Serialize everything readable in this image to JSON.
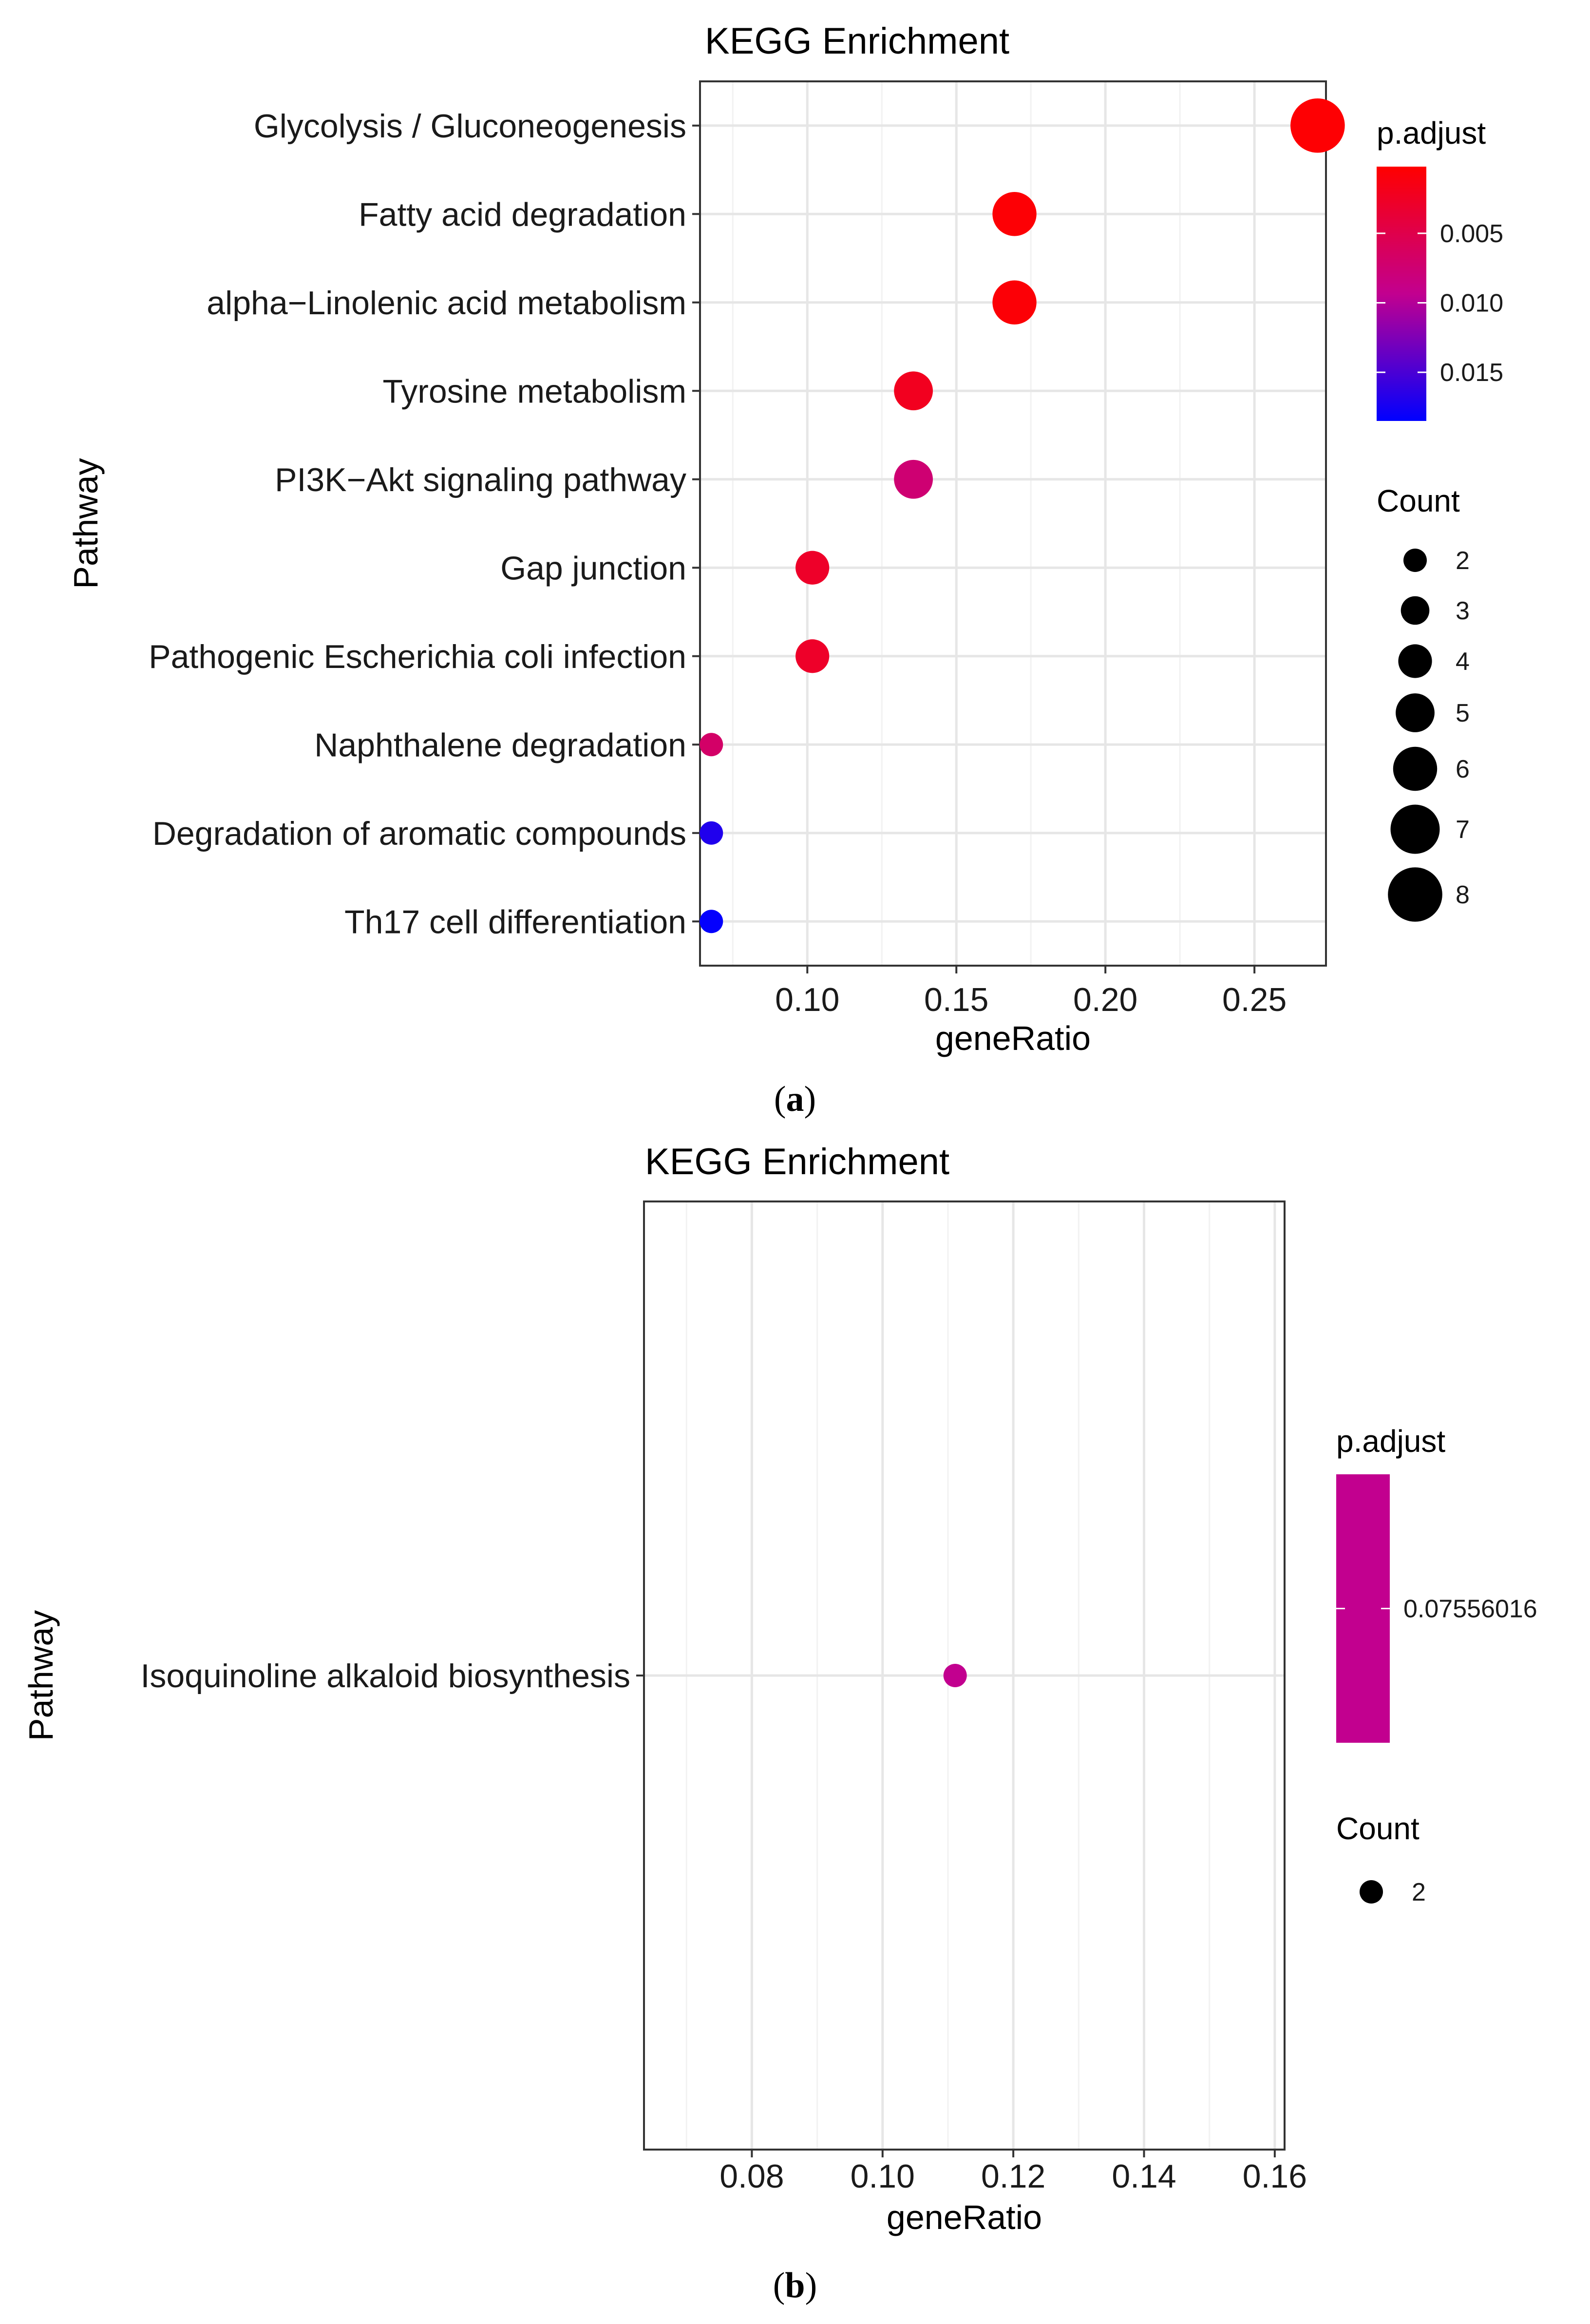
{
  "panels": [
    {
      "caption_letter": "a",
      "legend": {
        "color_title": "p.adjust",
        "color_ticks": [
          "0.005",
          "0.010",
          "0.015"
        ],
        "color_tick_values": [
          0.005,
          0.01,
          0.015
        ],
        "color_range": [
          0.0002,
          0.0185
        ],
        "gradient_colors": [
          "#FF0000",
          "#C2008F",
          "#0000FF"
        ],
        "size_title": "Count",
        "size_entries": [
          "2",
          "3",
          "4",
          "5",
          "6",
          "7",
          "8"
        ]
      },
      "chart_data": {
        "type": "scatter",
        "title": "KEGG Enrichment",
        "xlabel": "geneRatio",
        "ylabel": "Pathway",
        "xlim": [
          0.064,
          0.274
        ],
        "x_ticks": [
          "0.10",
          "0.15",
          "0.20",
          "0.25"
        ],
        "x_tick_values": [
          0.1,
          0.15,
          0.2,
          0.25
        ],
        "grid": true,
        "legend_placement": "right",
        "categories": [
          "Glycolysis / Gluconeogenesis",
          "Fatty acid degradation",
          "alpha−Linolenic acid metabolism",
          "Tyrosine metabolism",
          "PI3K−Akt signaling pathway",
          "Gap junction",
          "Pathogenic Escherichia coli infection",
          "Naphthalene degradation",
          "Degradation of aromatic compounds",
          "Th17 cell differentiation"
        ],
        "x": [
          0.2712,
          0.1695,
          0.1695,
          0.1356,
          0.1356,
          0.1017,
          0.1017,
          0.0678,
          0.0678,
          0.0678
        ],
        "count": [
          8,
          6,
          6,
          5,
          5,
          4,
          4,
          2,
          2,
          2
        ],
        "p_adjust": [
          0.0004,
          0.0005,
          0.0006,
          0.0022,
          0.0075,
          0.0028,
          0.0028,
          0.0068,
          0.017,
          0.0183
        ]
      }
    },
    {
      "caption_letter": "b",
      "legend": {
        "color_title": "p.adjust",
        "color_ticks": [
          "0.07556016"
        ],
        "color_tick_values": [
          0.07556016
        ],
        "gradient_colors": [
          "#C2008F",
          "#C2008F"
        ],
        "size_title": "Count",
        "size_entries": [
          "2"
        ]
      },
      "chart_data": {
        "type": "scatter",
        "title": "KEGG Enrichment",
        "xlabel": "geneRatio",
        "ylabel": "Pathway",
        "xlim": [
          0.0635,
          0.1615
        ],
        "x_ticks": [
          "0.08",
          "0.10",
          "0.12",
          "0.14",
          "0.16"
        ],
        "x_tick_values": [
          0.08,
          0.1,
          0.12,
          0.14,
          0.16
        ],
        "grid": true,
        "legend_placement": "right",
        "categories": [
          "Isoquinoline alkaloid biosynthesis"
        ],
        "x": [
          0.1111
        ],
        "count": [
          2
        ],
        "p_adjust": [
          0.07556016
        ]
      }
    }
  ]
}
